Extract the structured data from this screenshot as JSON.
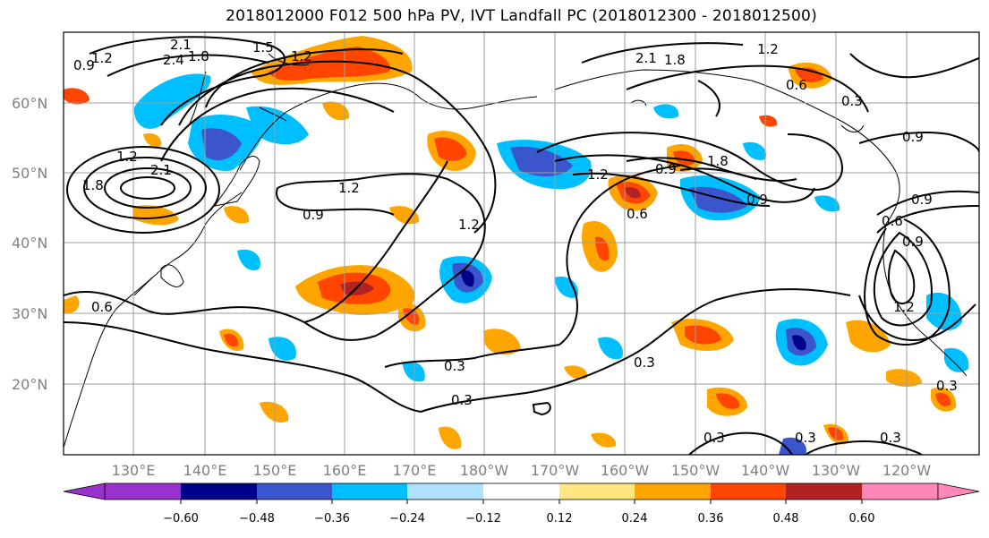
{
  "title": "2018012000 F012 500 hPa PV, IVT Landfall PC (2018012300 - 2018012500)",
  "lat_labels": [
    "60°N",
    "50°N",
    "40°N",
    "30°N",
    "20°N"
  ],
  "lon_labels": [
    "130°E",
    "140°E",
    "150°E",
    "160°E",
    "170°E",
    "180°W",
    "170°W",
    "160°W",
    "150°W",
    "140°W",
    "130°W",
    "120°W"
  ],
  "colorbar": {
    "ticks": [
      "−0.60",
      "−0.48",
      "−0.36",
      "−0.24",
      "−0.12",
      "0.12",
      "0.24",
      "0.36",
      "0.48",
      "0.60"
    ],
    "colors": [
      "#9932CC",
      "#00008B",
      "#3B55CC",
      "#00BFFF",
      "#B0E0FF",
      "#FFFFFF",
      "#FFE680",
      "#FFA500",
      "#FF4500",
      "#B22222",
      "#FF88B8"
    ]
  },
  "contour_labels": [
    "0.9",
    "1.2",
    "2.4",
    "2.1",
    "1.5",
    "1.8",
    "1.2",
    "2.1",
    "1.8",
    "0.6",
    "0.3",
    "0.9",
    "1.2",
    "1.8",
    "2.1",
    "1.2",
    "0.9",
    "1.2",
    "0.9",
    "0.6",
    "0.3",
    "0.3",
    "0.3",
    "0.3",
    "0.3",
    "0.3",
    "0.3",
    "0.6",
    "0.9",
    "0.6",
    "0.9",
    "1.2",
    "1.8",
    "1.2",
    "0.9",
    "1.2"
  ]
}
